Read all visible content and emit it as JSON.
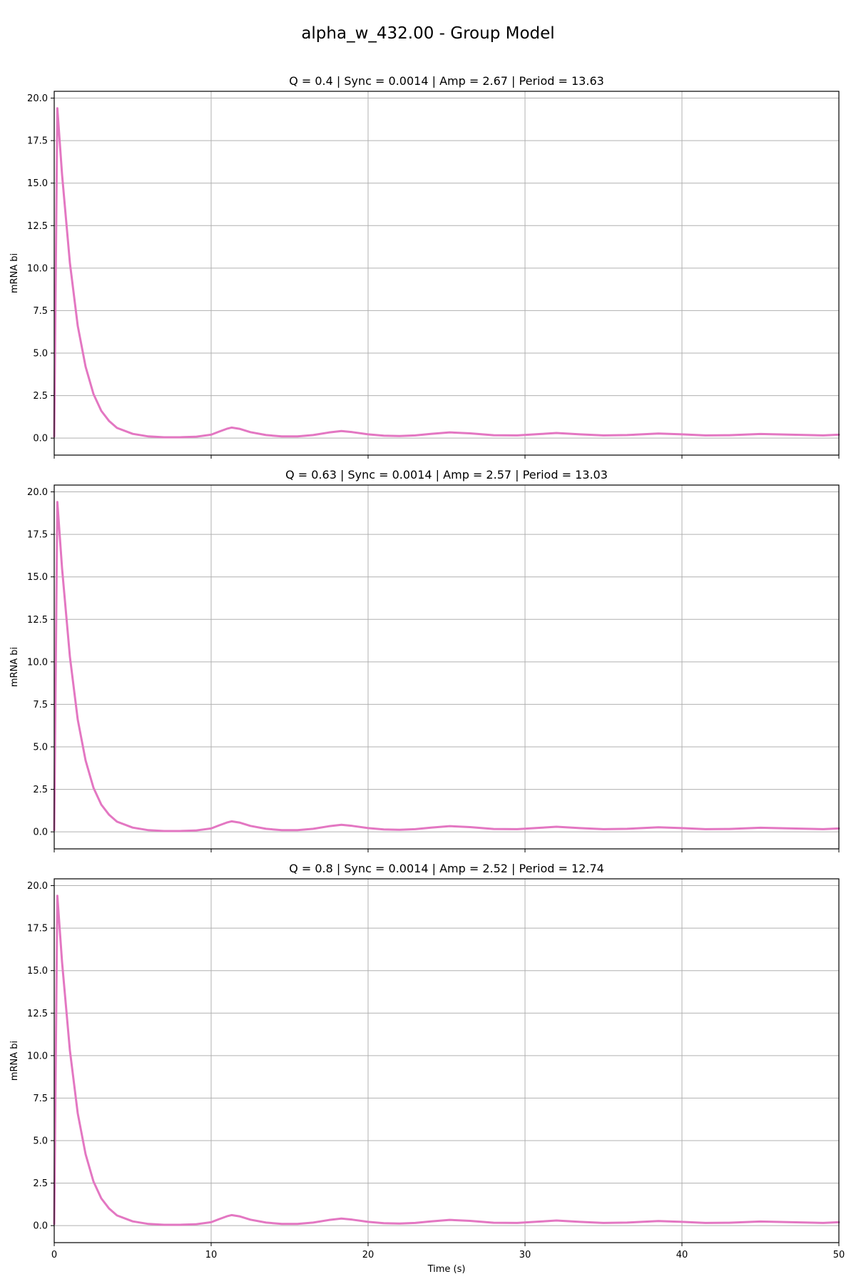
{
  "figure": {
    "title": "alpha_w_432.00 - Group Model",
    "series_color": "#e377c2"
  },
  "chart_data": [
    {
      "type": "line",
      "title": "Q = 0.4 | Sync = 0.0014 | Amp = 2.67 | Period = 13.63",
      "xlabel": "",
      "ylabel": "mRNA bi",
      "xlim": [
        0,
        50
      ],
      "ylim": [
        -1.0,
        20.4
      ],
      "xticks": [
        0,
        10,
        20,
        30,
        40,
        50
      ],
      "yticks": [
        0.0,
        2.5,
        5.0,
        7.5,
        10.0,
        12.5,
        15.0,
        17.5,
        20.0
      ],
      "grid": true,
      "series": [
        {
          "name": "mRNA bi",
          "x": [
            0,
            0.2,
            0.5,
            1,
            1.5,
            2,
            2.5,
            3,
            3.5,
            4,
            5,
            6,
            7,
            8,
            9,
            10,
            10.5,
            11,
            11.3,
            11.8,
            12.5,
            13.5,
            14.5,
            15.5,
            16.5,
            17.5,
            18.3,
            19,
            20,
            21,
            22,
            23,
            24,
            25.2,
            26.5,
            28,
            29.5,
            31,
            32,
            33.5,
            35,
            36.5,
            38.5,
            40,
            41.5,
            43,
            45,
            47,
            49,
            50
          ],
          "values": [
            0.1,
            19.4,
            15.5,
            10.3,
            6.6,
            4.2,
            2.6,
            1.6,
            1.0,
            0.6,
            0.25,
            0.1,
            0.05,
            0.05,
            0.08,
            0.2,
            0.38,
            0.55,
            0.62,
            0.55,
            0.35,
            0.18,
            0.1,
            0.1,
            0.18,
            0.33,
            0.42,
            0.35,
            0.22,
            0.14,
            0.12,
            0.16,
            0.25,
            0.34,
            0.28,
            0.17,
            0.16,
            0.24,
            0.3,
            0.22,
            0.16,
            0.18,
            0.27,
            0.22,
            0.16,
            0.17,
            0.24,
            0.2,
            0.16,
            0.2
          ]
        }
      ]
    },
    {
      "type": "line",
      "title": "Q = 0.63 | Sync = 0.0014 | Amp = 2.57 | Period = 13.03",
      "xlabel": "",
      "ylabel": "mRNA bi",
      "xlim": [
        0,
        50
      ],
      "ylim": [
        -1.0,
        20.4
      ],
      "xticks": [
        0,
        10,
        20,
        30,
        40,
        50
      ],
      "yticks": [
        0.0,
        2.5,
        5.0,
        7.5,
        10.0,
        12.5,
        15.0,
        17.5,
        20.0
      ],
      "grid": true,
      "series": [
        {
          "name": "mRNA bi",
          "x": [
            0,
            0.2,
            0.5,
            1,
            1.5,
            2,
            2.5,
            3,
            3.5,
            4,
            5,
            6,
            7,
            8,
            9,
            10,
            10.5,
            11,
            11.3,
            11.8,
            12.5,
            13.5,
            14.5,
            15.5,
            16.5,
            17.5,
            18.3,
            19,
            20,
            21,
            22,
            23,
            24,
            25.2,
            26.5,
            28,
            29.5,
            31,
            32,
            33.5,
            35,
            36.5,
            38.5,
            40,
            41.5,
            43,
            45,
            47,
            49,
            50
          ],
          "values": [
            0.1,
            19.4,
            15.5,
            10.3,
            6.6,
            4.2,
            2.6,
            1.6,
            1.0,
            0.6,
            0.25,
            0.1,
            0.05,
            0.05,
            0.08,
            0.2,
            0.38,
            0.55,
            0.62,
            0.55,
            0.35,
            0.18,
            0.1,
            0.1,
            0.18,
            0.33,
            0.42,
            0.35,
            0.22,
            0.14,
            0.12,
            0.16,
            0.25,
            0.34,
            0.28,
            0.17,
            0.16,
            0.24,
            0.3,
            0.22,
            0.16,
            0.18,
            0.27,
            0.22,
            0.16,
            0.17,
            0.24,
            0.2,
            0.16,
            0.2
          ]
        }
      ]
    },
    {
      "type": "line",
      "title": "Q = 0.8 | Sync = 0.0014 | Amp = 2.52 | Period = 12.74",
      "xlabel": "Time (s)",
      "ylabel": "mRNA bi",
      "xlim": [
        0,
        50
      ],
      "ylim": [
        -1.0,
        20.4
      ],
      "xticks": [
        0,
        10,
        20,
        30,
        40,
        50
      ],
      "yticks": [
        0.0,
        2.5,
        5.0,
        7.5,
        10.0,
        12.5,
        15.0,
        17.5,
        20.0
      ],
      "grid": true,
      "series": [
        {
          "name": "mRNA bi",
          "x": [
            0,
            0.2,
            0.5,
            1,
            1.5,
            2,
            2.5,
            3,
            3.5,
            4,
            5,
            6,
            7,
            8,
            9,
            10,
            10.5,
            11,
            11.3,
            11.8,
            12.5,
            13.5,
            14.5,
            15.5,
            16.5,
            17.5,
            18.3,
            19,
            20,
            21,
            22,
            23,
            24,
            25.2,
            26.5,
            28,
            29.5,
            31,
            32,
            33.5,
            35,
            36.5,
            38.5,
            40,
            41.5,
            43,
            45,
            47,
            49,
            50
          ],
          "values": [
            0.1,
            19.4,
            15.5,
            10.3,
            6.6,
            4.2,
            2.6,
            1.6,
            1.0,
            0.6,
            0.25,
            0.1,
            0.05,
            0.05,
            0.08,
            0.2,
            0.38,
            0.55,
            0.62,
            0.55,
            0.35,
            0.18,
            0.1,
            0.1,
            0.18,
            0.33,
            0.42,
            0.35,
            0.22,
            0.14,
            0.12,
            0.16,
            0.25,
            0.34,
            0.28,
            0.17,
            0.16,
            0.24,
            0.3,
            0.22,
            0.16,
            0.18,
            0.27,
            0.22,
            0.16,
            0.17,
            0.24,
            0.2,
            0.16,
            0.2
          ]
        }
      ]
    }
  ]
}
